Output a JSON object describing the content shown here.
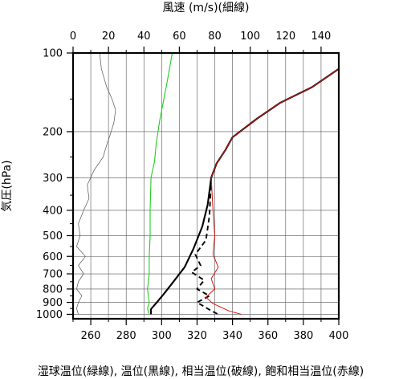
{
  "chart_data": {
    "type": "line",
    "title": "",
    "top_axis_label": "風速 (m/s)(細線)",
    "ylabel": "気圧(hPa)",
    "xlabel": "湿球温位(緑線), 温位(黒線), 相当温位(破線), 飽和相当温位(赤線)",
    "y_scale": "log",
    "y_inverted": true,
    "ylim": [
      1040,
      100
    ],
    "xlim": [
      250,
      400
    ],
    "top_xlim": [
      0,
      150
    ],
    "y_ticks": [
      100,
      200,
      300,
      400,
      500,
      600,
      700,
      800,
      900,
      1000
    ],
    "y_minor_ticks": [
      150,
      250,
      350,
      450,
      550,
      650,
      750,
      850,
      950
    ],
    "x_ticks": [
      260,
      280,
      300,
      320,
      340,
      360,
      380,
      400
    ],
    "x_minor_ticks": [
      250,
      270,
      290,
      310,
      330,
      350,
      370,
      390
    ],
    "top_x_ticks": [
      0,
      20,
      40,
      60,
      80,
      100,
      120,
      140
    ],
    "grid": true,
    "colors": {
      "wind": "#555555",
      "wet_bulb_potential_temperature": "#22cc22",
      "potential_temperature": "#000000",
      "equivalent_potential_temperature": "#000000",
      "saturated_equivalent_potential_temperature": "#dd1111"
    },
    "series": [
      {
        "key": "wind",
        "axis": "top",
        "style": "thin",
        "points": [
          [
            15,
            100
          ],
          [
            16,
            115
          ],
          [
            19,
            135
          ],
          [
            22,
            150
          ],
          [
            24,
            165
          ],
          [
            23,
            185
          ],
          [
            21,
            205
          ],
          [
            19,
            225
          ],
          [
            17,
            250
          ],
          [
            12,
            280
          ],
          [
            8,
            320
          ],
          [
            9,
            360
          ],
          [
            6,
            400
          ],
          [
            3,
            450
          ],
          [
            4,
            500
          ],
          [
            2,
            550
          ],
          [
            7,
            600
          ],
          [
            3,
            650
          ],
          [
            6,
            700
          ],
          [
            3,
            750
          ],
          [
            2,
            800
          ],
          [
            5,
            850
          ],
          [
            3,
            900
          ],
          [
            2,
            950
          ],
          [
            3,
            1000
          ]
        ]
      },
      {
        "key": "wet_bulb_potential_temperature",
        "axis": "bottom",
        "points": [
          [
            306,
            100
          ],
          [
            303,
            130
          ],
          [
            299,
            180
          ],
          [
            297,
            220
          ],
          [
            296,
            260
          ],
          [
            294,
            300
          ],
          [
            293.5,
            400
          ],
          [
            293.5,
            500
          ],
          [
            293,
            600
          ],
          [
            293,
            700
          ],
          [
            292,
            800
          ],
          [
            293,
            900
          ],
          [
            292,
            950
          ],
          [
            293,
            1000
          ]
        ]
      },
      {
        "key": "potential_temperature",
        "axis": "bottom",
        "points": [
          [
            400,
            115
          ],
          [
            385,
            135
          ],
          [
            367,
            155
          ],
          [
            354,
            178
          ],
          [
            340,
            210
          ],
          [
            336,
            235
          ],
          [
            331,
            265
          ],
          [
            328,
            300
          ],
          [
            326,
            380
          ],
          [
            323,
            460
          ],
          [
            318,
            560
          ],
          [
            313,
            660
          ],
          [
            306,
            760
          ],
          [
            301,
            840
          ],
          [
            297,
            905
          ],
          [
            294,
            955
          ],
          [
            294,
            1000
          ]
        ]
      },
      {
        "key": "equivalent_potential_temperature",
        "axis": "bottom",
        "style": "dashed",
        "points": [
          [
            328,
            300
          ],
          [
            327,
            420
          ],
          [
            325,
            520
          ],
          [
            319,
            590
          ],
          [
            322,
            650
          ],
          [
            317,
            690
          ],
          [
            324,
            740
          ],
          [
            320,
            800
          ],
          [
            327,
            850
          ],
          [
            320,
            900
          ],
          [
            327,
            960
          ],
          [
            332,
            1000
          ]
        ]
      },
      {
        "key": "saturated_equivalent_potential_temperature",
        "axis": "bottom",
        "points": [
          [
            400,
            115
          ],
          [
            385,
            135
          ],
          [
            367,
            155
          ],
          [
            354,
            178
          ],
          [
            340,
            210
          ],
          [
            336,
            235
          ],
          [
            331,
            265
          ],
          [
            328,
            300
          ],
          [
            329,
            400
          ],
          [
            330,
            500
          ],
          [
            329,
            590
          ],
          [
            332,
            660
          ],
          [
            328,
            730
          ],
          [
            330,
            800
          ],
          [
            325,
            860
          ],
          [
            329,
            910
          ],
          [
            338,
            970
          ],
          [
            345,
            1000
          ]
        ]
      }
    ]
  }
}
